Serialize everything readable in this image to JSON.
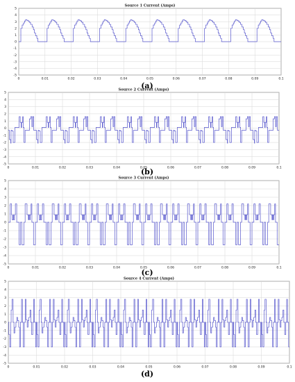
{
  "chart_data": [
    {
      "type": "line",
      "title": "Source 1 Current (Amps)",
      "caption": "(a)",
      "xlabel": "",
      "ylabel": "",
      "xlim": [
        0,
        0.1
      ],
      "ylim": [
        -5,
        5
      ],
      "xticks": [
        "0",
        "0.01",
        "0.02",
        "0.03",
        "0.04",
        "0.05",
        "0.06",
        "0.07",
        "0.08",
        "0.09",
        "0.1"
      ],
      "yticks": [
        "5",
        "4",
        "3",
        "2",
        "1",
        "0",
        "-1",
        "-2",
        "-3",
        "-4",
        "-5"
      ],
      "grid": true,
      "period": 0.01,
      "series": [
        {
          "color": "#5555cc",
          "x": [
            0,
            0.0008,
            0.0008,
            0.0013,
            0.0013,
            0.0018,
            0.0018,
            0.0022,
            0.0022,
            0.0026,
            0.0026,
            0.0031,
            0.0031,
            0.0036,
            0.0036,
            0.004,
            0.004,
            0.0045,
            0.0045,
            0.0051,
            0.0051,
            0.0056,
            0.0056,
            0.006,
            0.006,
            0.0064,
            0.0064,
            0.0069,
            0.0069,
            0.0073,
            0.0073,
            0.01
          ],
          "y": [
            0,
            0,
            2.0,
            2.0,
            2.5,
            2.5,
            2.8,
            2.8,
            3.1,
            3.1,
            3.3,
            3.3,
            3.2,
            3.2,
            3.1,
            3.1,
            2.9,
            2.9,
            2.6,
            2.6,
            2.2,
            2.2,
            1.8,
            1.8,
            1.3,
            1.3,
            0.9,
            0.9,
            0.5,
            0.5,
            0,
            0
          ]
        }
      ]
    },
    {
      "type": "line",
      "title": "Source 2 Current (Amps)",
      "caption": "(b)",
      "xlabel": "",
      "ylabel": "",
      "xlim": [
        0,
        0.1
      ],
      "ylim": [
        -5,
        5
      ],
      "xticks": [
        "0",
        "0.01",
        "0.02",
        "0.03",
        "0.04",
        "0.05",
        "0.06",
        "0.07",
        "0.08",
        "0.09",
        "0.1"
      ],
      "yticks": [
        "5",
        "4",
        "3",
        "2",
        "1",
        "0",
        "-1",
        "-2",
        "-3",
        "-4",
        "-5"
      ],
      "grid": true,
      "period": 0.01,
      "series": [
        {
          "color": "#5555cc",
          "x": [
            0,
            0.0004,
            0.0004,
            0.0009,
            0.0009,
            0.001,
            0.001,
            0.0013,
            0.0013,
            0.0018,
            0.0018,
            0.0024,
            0.0024,
            0.004,
            0.004,
            0.0044,
            0.0044,
            0.0047,
            0.0047,
            0.0049,
            0.0049,
            0.0053,
            0.0053,
            0.0055,
            0.0055,
            0.0058,
            0.0058,
            0.0062,
            0.0062,
            0.0078,
            0.0078,
            0.0083,
            0.0083,
            0.0087,
            0.0087,
            0.009,
            0.009,
            0.0094,
            0.0094,
            0.01
          ],
          "y": [
            -0.3,
            -0.3,
            -1.6,
            -1.6,
            -2.1,
            -2.1,
            -0.3,
            -0.3,
            -0.4,
            -0.4,
            -2.0,
            -2.0,
            0.1,
            0.1,
            1.6,
            1.6,
            0.8,
            0.8,
            0.1,
            0.1,
            0.8,
            0.8,
            1.6,
            1.6,
            0.1,
            0.1,
            -2.0,
            -2.0,
            -0.3,
            -0.3,
            1.3,
            1.3,
            1.6,
            1.6,
            0.2,
            0.2,
            1.6,
            1.6,
            -0.3,
            -0.3
          ]
        }
      ]
    },
    {
      "type": "line",
      "title": "Source 3 Current (Amps)",
      "caption": "(c)",
      "xlabel": "",
      "ylabel": "",
      "xlim": [
        0,
        0.1
      ],
      "ylim": [
        -5,
        5
      ],
      "xticks": [
        "0",
        "0.01",
        "0.02",
        "0.03",
        "0.04",
        "0.05",
        "0.06",
        "0.07",
        "0.08",
        "0.09",
        "0.1"
      ],
      "yticks": [
        "5",
        "4",
        "3",
        "2",
        "1",
        "0",
        "-1",
        "-2",
        "-3",
        "-4",
        "-5"
      ],
      "grid": true,
      "period": 0.01,
      "series": [
        {
          "color": "#5555cc",
          "x": [
            0,
            0.0007,
            0.0007,
            0.0012,
            0.0012,
            0.0014,
            0.0014,
            0.0018,
            0.0018,
            0.002,
            0.002,
            0.0023,
            0.0023,
            0.0026,
            0.0026,
            0.0031,
            0.0031,
            0.004,
            0.004,
            0.0045,
            0.0045,
            0.005,
            0.005,
            0.0058,
            0.0058,
            0.0062,
            0.0062,
            0.0069,
            0.0069,
            0.0074,
            0.0074,
            0.0076,
            0.0076,
            0.0079,
            0.0079,
            0.0081,
            0.0081,
            0.0084,
            0.0084,
            0.0087,
            0.0087,
            0.0093,
            0.0093,
            0.01
          ],
          "y": [
            0,
            0,
            2.2,
            2.2,
            0.9,
            0.9,
            0.3,
            0.3,
            0.9,
            0.9,
            0.3,
            0.3,
            0.9,
            0.9,
            2.2,
            2.2,
            0,
            0,
            -2.7,
            -2.7,
            0,
            0,
            -2.7,
            -2.7,
            0,
            0,
            2.2,
            2.2,
            0.9,
            0.9,
            0.3,
            0.3,
            0.9,
            0.9,
            0.3,
            0.3,
            0.9,
            0.9,
            2.2,
            2.2,
            0,
            0,
            -2.7,
            -2.7
          ]
        }
      ]
    },
    {
      "type": "line",
      "title": "Source 4 Current (Amps)",
      "caption": "(d)",
      "xlabel": "",
      "ylabel": "",
      "xlim": [
        0,
        0.1
      ],
      "ylim": [
        -5,
        5
      ],
      "xticks": [
        "0",
        "0.01",
        "0.02",
        "0.03",
        "0.04",
        "0.05",
        "0.06",
        "0.07",
        "0.08",
        "0.09",
        "0.1"
      ],
      "yticks": [
        "5",
        "4",
        "3",
        "2",
        "1",
        "0",
        "-1",
        "-2",
        "-3",
        "-4",
        "-5"
      ],
      "grid": true,
      "period": 0.01,
      "series": [
        {
          "color": "#5555cc",
          "x": [
            0,
            0.0002,
            0.0002,
            0.0005,
            0.0005,
            0.0009,
            0.0009,
            0.001,
            0.001,
            0.0013,
            0.0013,
            0.0017,
            0.0017,
            0.002,
            0.002,
            0.0023,
            0.0023,
            0.0027,
            0.0027,
            0.003,
            0.003,
            0.0033,
            0.0033,
            0.0037,
            0.0037,
            0.004,
            0.004,
            0.0043,
            0.0043,
            0.0047,
            0.0047,
            0.005,
            0.005,
            0.0053,
            0.0053,
            0.0057,
            0.0057,
            0.006,
            0.006,
            0.0063,
            0.0063,
            0.0067,
            0.0067,
            0.007,
            0.007,
            0.0073,
            0.0073,
            0.0077,
            0.0077,
            0.008,
            0.008,
            0.0083,
            0.0083,
            0.0087,
            0.0087,
            0.009,
            0.009,
            0.0093,
            0.0093,
            0.0097,
            0.0097,
            0.01
          ],
          "y": [
            0,
            0,
            -1.5,
            -1.5,
            -3.0,
            -3.0,
            0,
            0,
            1.5,
            1.5,
            2.8,
            2.8,
            0,
            0,
            -1.3,
            -1.3,
            -0.6,
            -0.6,
            0,
            0,
            0.6,
            0.6,
            0.2,
            0.2,
            -0.6,
            -0.6,
            -3.0,
            -3.0,
            0,
            0,
            2.8,
            2.8,
            0,
            0,
            -3.0,
            -3.0,
            0,
            0,
            2.8,
            2.8,
            0.3,
            0.3,
            -0.6,
            -0.6,
            0.2,
            0.2,
            0.6,
            0.6,
            1.5,
            1.5,
            0,
            0,
            -1.5,
            -1.5,
            0,
            0,
            2.8,
            2.8,
            0,
            0,
            -3.0,
            -3.0
          ]
        }
      ]
    }
  ]
}
